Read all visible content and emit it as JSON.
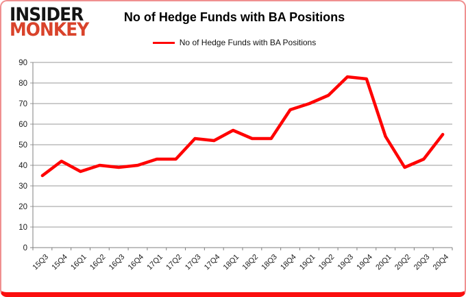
{
  "page": {
    "frame_border_color": "#f09090",
    "frame_bottom_color": "#fb0f0f",
    "background": "#ffffff"
  },
  "logo": {
    "line1": "INSIDER",
    "line2": "MONKEY",
    "line1_color": "#141414",
    "line2_color": "#d9432b"
  },
  "header": {
    "title": "No of Hedge Funds with BA Positions"
  },
  "legend": {
    "label": "No of Hedge Funds with BA Positions",
    "line_color": "#ff0000"
  },
  "chart_data": {
    "type": "line",
    "title": "No of Hedge Funds with BA Positions",
    "categories": [
      "15Q3",
      "15Q4",
      "16Q1",
      "16Q2",
      "16Q3",
      "16Q4",
      "17Q1",
      "17Q2",
      "17Q3",
      "17Q4",
      "18Q1",
      "18Q2",
      "18Q3",
      "18Q4",
      "19Q1",
      "19Q2",
      "19Q3",
      "19Q4",
      "20Q1",
      "20Q2",
      "20Q3",
      "20Q4"
    ],
    "series": [
      {
        "name": "No of Hedge Funds with BA Positions",
        "color": "#ff0000",
        "values": [
          35,
          42,
          37,
          40,
          39,
          40,
          43,
          43,
          53,
          52,
          57,
          53,
          53,
          67,
          70,
          74,
          83,
          82,
          54,
          39,
          43,
          55
        ]
      }
    ],
    "xlabel": "",
    "ylabel": "",
    "ylim": [
      0,
      90
    ],
    "yticks": [
      0,
      10,
      20,
      30,
      40,
      50,
      60,
      70,
      80,
      90
    ],
    "grid": true,
    "legend_position": "top",
    "gridline_color": "#9a9a9a",
    "axis_color": "#7f7f7f",
    "tick_label_color": "#1a1a1a"
  }
}
